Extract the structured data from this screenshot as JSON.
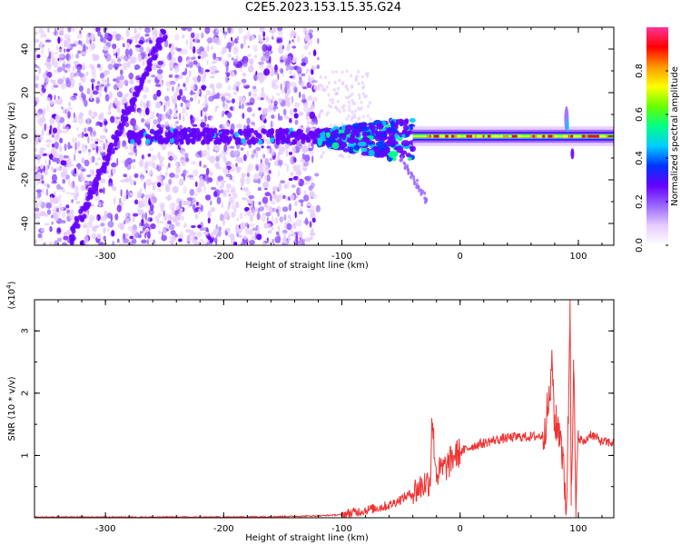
{
  "title": "C2E5.2023.153.15.35.G24",
  "colors": {
    "snr_line": "#ee3333",
    "axis": "#000000",
    "background": "#ffffff"
  },
  "chart_data": [
    {
      "type": "heatmap",
      "xlabel": "Height of straight line (km)",
      "ylabel": "Frequency (Hz)",
      "xlim": [
        -360,
        130
      ],
      "ylim": [
        -50,
        50
      ],
      "xticks": [
        -300,
        -200,
        -100,
        0,
        100
      ],
      "yticks": [
        -40,
        -20,
        0,
        20,
        40
      ],
      "colorbar": {
        "label": "Normalized spectral amplitude",
        "range": [
          0,
          1
        ],
        "ticks": [
          0.0,
          0.2,
          0.4,
          0.6,
          0.8
        ],
        "colormap": [
          "#ffffff",
          "#e6ccff",
          "#9966ff",
          "#6600ff",
          "#0033ff",
          "#00ccff",
          "#00ff88",
          "#66ff00",
          "#ffff00",
          "#ff9900",
          "#ff0000",
          "#ff3399"
        ]
      },
      "features": [
        {
          "name": "diagonal trace descending",
          "x_range": [
            -330,
            -250
          ],
          "freq_range": [
            -48,
            48
          ]
        },
        {
          "name": "scattered noise",
          "x_range": [
            -360,
            -120
          ],
          "freq_range": [
            -50,
            50
          ]
        },
        {
          "name": "central carrier line",
          "x_range": [
            -280,
            130
          ],
          "freq_range": [
            0,
            0
          ]
        },
        {
          "name": "descending tail",
          "x_range": [
            -50,
            -30
          ],
          "freq_range": [
            -10,
            -30
          ]
        }
      ]
    },
    {
      "type": "line",
      "xlabel": "Height of straight line (km)",
      "ylabel": "SNR (10 * v/v)",
      "yscale_label": "(x10",
      "yscale_exp": "4",
      "yscale_close": ")",
      "xlim": [
        -360,
        130
      ],
      "ylim": [
        0,
        3.5
      ],
      "xticks": [
        -300,
        -200,
        -100,
        0,
        100
      ],
      "yticks": [
        1,
        2,
        3
      ],
      "series": [
        {
          "x": [
            -360,
            -300,
            -200,
            -150,
            -120,
            -100,
            -80,
            -60,
            -50,
            -40,
            -30,
            -25,
            -24,
            -20,
            -10,
            -5,
            0,
            10,
            20,
            30,
            40,
            50,
            60,
            70,
            75,
            78,
            80,
            85,
            88,
            90,
            92,
            93,
            94,
            96,
            98,
            100,
            105,
            110,
            120,
            130
          ],
          "y": [
            0.01,
            0.01,
            0.01,
            0.02,
            0.03,
            0.05,
            0.12,
            0.2,
            0.3,
            0.4,
            0.55,
            0.6,
            1.6,
            0.7,
            0.85,
            1.0,
            1.05,
            1.15,
            1.2,
            1.25,
            1.28,
            1.3,
            1.3,
            1.32,
            1.8,
            2.45,
            1.5,
            1.4,
            0.6,
            0.2,
            2.1,
            3.5,
            0.5,
            2.4,
            0.1,
            1.3,
            1.2,
            1.35,
            1.22,
            1.2
          ]
        }
      ]
    }
  ]
}
